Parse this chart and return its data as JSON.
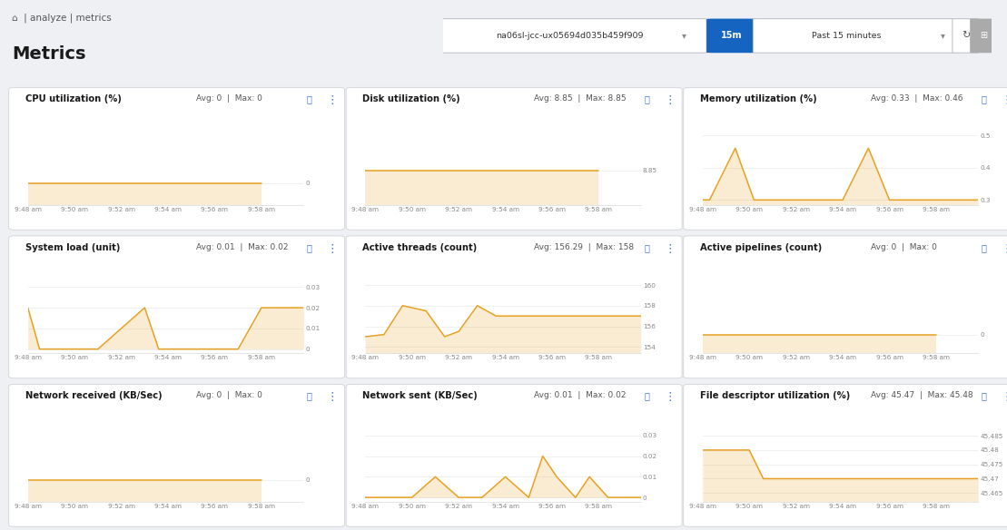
{
  "title": "Metrics",
  "header_text": "⌂  | analyze | metrics",
  "dropdown_label": "na06sl-jcc-ux05694d035b459f909",
  "background_color": "#eef0f3",
  "card_bg": "#ffffff",
  "line_color": "#e8a020",
  "x_ticks": [
    "9:48 am",
    "9:50 am",
    "9:52 am",
    "9:54 am",
    "9:56 am",
    "9:58 am"
  ],
  "panels": [
    {
      "title": "CPU utilization (%)",
      "avg": "Avg: 0",
      "max": "Max: 0",
      "y_ticks": [
        0
      ],
      "ylim": [
        -0.05,
        0.12
      ],
      "data_x": [
        0,
        1,
        2,
        3,
        4,
        5
      ],
      "data_y": [
        0.0,
        0.0,
        0.0,
        0.0,
        0.0,
        0.0
      ],
      "fill_base": -0.05
    },
    {
      "title": "Disk utilization (%)",
      "avg": "Avg: 8.85",
      "max": "Max: 8.85",
      "y_ticks": [
        8.85
      ],
      "ylim": [
        8.72,
        9.0
      ],
      "data_x": [
        0,
        1,
        2,
        3,
        4,
        5
      ],
      "data_y": [
        8.85,
        8.85,
        8.85,
        8.85,
        8.85,
        8.85
      ],
      "fill_base": 8.72
    },
    {
      "title": "Memory utilization (%)",
      "avg": "Avg: 0.33",
      "max": "Max: 0.46",
      "y_ticks": [
        0.5,
        0.4,
        0.3
      ],
      "ylim": [
        0.285,
        0.515
      ],
      "data_x": [
        0,
        0.15,
        0.7,
        1.1,
        1.4,
        2.0,
        2.5,
        3.0,
        3.55,
        4.0,
        4.35,
        4.6,
        5.0,
        5.9
      ],
      "data_y": [
        0.3,
        0.3,
        0.46,
        0.3,
        0.3,
        0.3,
        0.3,
        0.3,
        0.46,
        0.3,
        0.3,
        0.3,
        0.3,
        0.3
      ],
      "fill_base": 0.285
    },
    {
      "title": "System load (unit)",
      "avg": "Avg: 0.01",
      "max": "Max: 0.02",
      "y_ticks": [
        0.03,
        0.02,
        0.01,
        0
      ],
      "ylim": [
        -0.002,
        0.034
      ],
      "data_x": [
        0,
        0.25,
        1.0,
        1.5,
        2.5,
        2.8,
        3.5,
        4.0,
        4.5,
        5.0,
        5.9
      ],
      "data_y": [
        0.02,
        0.0,
        0.0,
        0.0,
        0.02,
        0.0,
        0.0,
        0.0,
        0.0,
        0.02,
        0.02
      ],
      "fill_base": 0.0
    },
    {
      "title": "Active threads (count)",
      "avg": "Avg: 156.29",
      "max": "Max: 158",
      "y_ticks": [
        160,
        158,
        156,
        154
      ],
      "ylim": [
        153.4,
        160.6
      ],
      "data_x": [
        0,
        0.4,
        0.8,
        1.3,
        1.7,
        2.0,
        2.4,
        2.8,
        3.2,
        3.5,
        3.8,
        4.2,
        4.5,
        5.0,
        5.9
      ],
      "data_y": [
        155.0,
        155.2,
        158.0,
        157.5,
        155.0,
        155.5,
        158.0,
        157.0,
        157.0,
        157.0,
        157.0,
        157.0,
        157.0,
        157.0,
        157.0
      ],
      "fill_base": 153.4
    },
    {
      "title": "Active pipelines (count)",
      "avg": "Avg: 0",
      "max": "Max: 0",
      "y_ticks": [
        0
      ],
      "ylim": [
        -0.05,
        0.15
      ],
      "data_x": [
        0,
        1,
        2,
        3,
        4,
        5
      ],
      "data_y": [
        0.0,
        0.0,
        0.0,
        0.0,
        0.0,
        0.0
      ],
      "fill_base": -0.05
    },
    {
      "title": "Network received (KB/Sec)",
      "avg": "Avg: 0",
      "max": "Max: 0",
      "y_ticks": [
        0
      ],
      "ylim": [
        -0.05,
        0.12
      ],
      "data_x": [
        0,
        1,
        2,
        3,
        4,
        5
      ],
      "data_y": [
        0.0,
        0.0,
        0.0,
        0.0,
        0.0,
        0.0
      ],
      "fill_base": -0.05
    },
    {
      "title": "Network sent (KB/Sec)",
      "avg": "Avg: 0.01",
      "max": "Max: 0.02",
      "y_ticks": [
        0.03,
        0.02,
        0.01,
        0
      ],
      "ylim": [
        -0.002,
        0.034
      ],
      "data_x": [
        0,
        1.0,
        1.5,
        2.0,
        2.5,
        3.0,
        3.5,
        3.8,
        4.1,
        4.5,
        4.8,
        5.2,
        5.5,
        5.9
      ],
      "data_y": [
        0.0,
        0.0,
        0.01,
        0.0,
        0.0,
        0.01,
        0.0,
        0.02,
        0.01,
        0.0,
        0.01,
        0.0,
        0.0,
        0.0
      ],
      "fill_base": 0.0
    },
    {
      "title": "File descriptor utilization (%)",
      "avg": "Avg: 45.47",
      "max": "Max: 45.48",
      "y_ticks": [
        45.485,
        45.48,
        45.475,
        45.47,
        45.465
      ],
      "ylim": [
        45.462,
        45.488
      ],
      "data_x": [
        0,
        0.5,
        1.0,
        1.3,
        1.8,
        2.5,
        3.0,
        5.9
      ],
      "data_y": [
        45.48,
        45.48,
        45.48,
        45.47,
        45.47,
        45.47,
        45.47,
        45.47
      ],
      "fill_base": 45.462
    }
  ]
}
